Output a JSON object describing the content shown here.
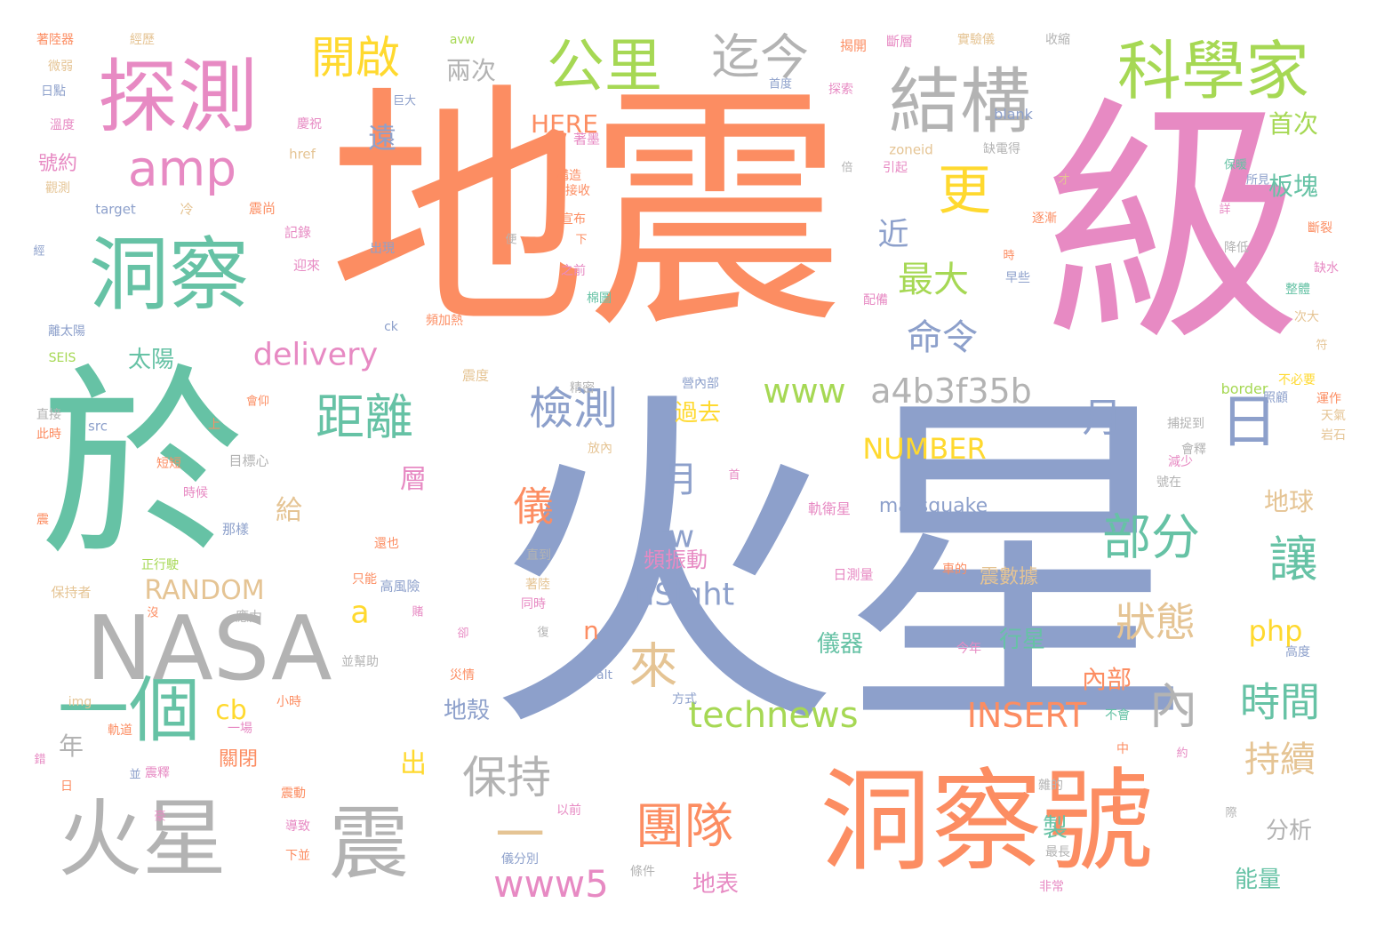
{
  "words": [
    {
      "text": "火星",
      "color": "#8da0cb"
    },
    {
      "text": "地震",
      "color": "#fc8d62"
    },
    {
      "text": "級",
      "color": "#e78ac3"
    },
    {
      "text": "於",
      "color": "#66c2a5"
    },
    {
      "text": "洞察號",
      "color": "#fc8d62"
    },
    {
      "text": "探測",
      "color": "#e78ac3"
    },
    {
      "text": "洞察",
      "color": "#66c2a5"
    },
    {
      "text": "NASA",
      "color": "#b3b3b3"
    },
    {
      "text": "火星",
      "color": "#b3b3b3"
    },
    {
      "text": "震",
      "color": "#b3b3b3"
    },
    {
      "text": "一個",
      "color": "#66c2a5"
    },
    {
      "text": "結構",
      "color": "#b3b3b3"
    },
    {
      "text": "科學家",
      "color": "#a6d854"
    },
    {
      "text": "公里",
      "color": "#a6d854"
    },
    {
      "text": "迄今",
      "color": "#b3b3b3"
    },
    {
      "text": "開啟",
      "color": "#ffd92f"
    },
    {
      "text": "amp",
      "color": "#e78ac3"
    },
    {
      "text": "更",
      "color": "#ffd92f"
    },
    {
      "text": "距離",
      "color": "#66c2a5"
    },
    {
      "text": "檢測",
      "color": "#8da0cb"
    },
    {
      "text": "部分",
      "color": "#66c2a5"
    },
    {
      "text": "讓",
      "color": "#66c2a5"
    },
    {
      "text": "月",
      "color": "#8da0cb"
    },
    {
      "text": "日",
      "color": "#8da0cb"
    },
    {
      "text": "內",
      "color": "#b3b3b3"
    },
    {
      "text": "時間",
      "color": "#66c2a5"
    },
    {
      "text": "狀態",
      "color": "#e5c494"
    },
    {
      "text": "持續",
      "color": "#e5c494"
    },
    {
      "text": "團隊",
      "color": "#fc8d62"
    },
    {
      "text": "保持",
      "color": "#b3b3b3"
    },
    {
      "text": "來",
      "color": "#e5c494"
    },
    {
      "text": "一",
      "color": "#e5c494"
    },
    {
      "text": "www5",
      "color": "#e78ac3"
    },
    {
      "text": "technews",
      "color": "#a6d854"
    },
    {
      "text": "INSERT",
      "color": "#fc8d62"
    },
    {
      "text": "NUMBER",
      "color": "#ffd92f"
    },
    {
      "text": "RANDOM",
      "color": "#e5c494"
    },
    {
      "text": "www",
      "color": "#a6d854"
    },
    {
      "text": "a4b3f35b",
      "color": "#b3b3b3"
    },
    {
      "text": "delivery",
      "color": "#e78ac3"
    },
    {
      "text": "InSight",
      "color": "#8da0cb"
    },
    {
      "text": "php",
      "color": "#ffd92f"
    },
    {
      "text": "命令",
      "color": "#8da0cb"
    },
    {
      "text": "最大",
      "color": "#a6d854"
    },
    {
      "text": "近",
      "color": "#8da0cb"
    },
    {
      "text": "儀",
      "color": "#fc8d62"
    },
    {
      "text": "月",
      "color": "#8da0cb"
    },
    {
      "text": "tw",
      "color": "#8da0cb"
    },
    {
      "text": "a",
      "color": "#ffd92f"
    },
    {
      "text": "cb",
      "color": "#ffd92f"
    },
    {
      "text": "n",
      "color": "#fc8d62"
    },
    {
      "text": "兩次",
      "color": "#b3b3b3"
    },
    {
      "text": "HERE",
      "color": "#fc8d62"
    },
    {
      "text": "遠",
      "color": "#8da0cb"
    },
    {
      "text": "首次",
      "color": "#a6d854"
    },
    {
      "text": "板塊",
      "color": "#66c2a5"
    },
    {
      "text": "號約",
      "color": "#e78ac3"
    },
    {
      "text": "太陽",
      "color": "#66c2a5"
    },
    {
      "text": "過去",
      "color": "#ffd92f"
    },
    {
      "text": "地球",
      "color": "#e5c494"
    },
    {
      "text": "頻振動",
      "color": "#e78ac3"
    },
    {
      "text": "儀器",
      "color": "#66c2a5"
    },
    {
      "text": "行星",
      "color": "#66c2a5"
    },
    {
      "text": "內部",
      "color": "#fc8d62"
    },
    {
      "text": "地殼",
      "color": "#8da0cb"
    },
    {
      "text": "震數據",
      "color": "#e5c494"
    },
    {
      "text": "分析",
      "color": "#b3b3b3"
    },
    {
      "text": "能量",
      "color": "#66c2a5"
    },
    {
      "text": "地表",
      "color": "#e78ac3"
    },
    {
      "text": "marsquake",
      "color": "#8da0cb"
    },
    {
      "text": "年",
      "color": "#b3b3b3"
    },
    {
      "text": "出",
      "color": "#ffd92f"
    },
    {
      "text": "關閉",
      "color": "#fc8d62"
    },
    {
      "text": "層",
      "color": "#e78ac3"
    },
    {
      "text": "給",
      "color": "#e5c494"
    },
    {
      "text": "製",
      "color": "#66c2a5"
    },
    {
      "text": "軌衛星",
      "color": "#e78ac3"
    },
    {
      "text": "日測量",
      "color": "#e78ac3"
    },
    {
      "text": "高風險",
      "color": "#8da0cb"
    },
    {
      "text": "應力",
      "color": "#b3b3b3"
    },
    {
      "text": "目標心",
      "color": "#b3b3b3"
    },
    {
      "text": "那樣",
      "color": "#8da0cb"
    },
    {
      "text": "正行駛",
      "color": "#a6d854"
    },
    {
      "text": "保持者",
      "color": "#e5c494"
    },
    {
      "text": "border",
      "color": "#a6d854"
    },
    {
      "text": "blank",
      "color": "#8da0cb"
    },
    {
      "text": "zoneid",
      "color": "#e5c494"
    },
    {
      "text": "href",
      "color": "#e5c494"
    },
    {
      "text": "target",
      "color": "#8da0cb"
    },
    {
      "text": "src",
      "color": "#8da0cb"
    },
    {
      "text": "SEIS",
      "color": "#a6d854"
    },
    {
      "text": "img",
      "color": "#e5c494"
    },
    {
      "text": "alt",
      "color": "#8da0cb"
    },
    {
      "text": "ck",
      "color": "#8da0cb"
    },
    {
      "text": "avw",
      "color": "#a6d854"
    },
    {
      "text": "觀測",
      "color": "#e5c494"
    },
    {
      "text": "日點",
      "color": "#8da0cb"
    },
    {
      "text": "溫度",
      "color": "#e78ac3"
    },
    {
      "text": "微弱",
      "color": "#e5c494"
    },
    {
      "text": "著陸器",
      "color": "#fc8d62"
    },
    {
      "text": "經歷",
      "color": "#e5c494"
    },
    {
      "text": "離太陽",
      "color": "#8da0cb"
    },
    {
      "text": "記錄",
      "color": "#e78ac3"
    },
    {
      "text": "迎來",
      "color": "#e78ac3"
    },
    {
      "text": "冷",
      "color": "#e5c494"
    },
    {
      "text": "震尚",
      "color": "#fc8d62"
    },
    {
      "text": "出現",
      "color": "#8da0cb"
    },
    {
      "text": "巨大",
      "color": "#8da0cb"
    },
    {
      "text": "著墨",
      "color": "#e78ac3"
    },
    {
      "text": "構造",
      "color": "#fc8d62"
    },
    {
      "text": "接收",
      "color": "#fc8d62"
    },
    {
      "text": "宣布",
      "color": "#fc8d62"
    },
    {
      "text": "之前",
      "color": "#e78ac3"
    },
    {
      "text": "精密",
      "color": "#b3b3b3"
    },
    {
      "text": "震度",
      "color": "#e5c494"
    },
    {
      "text": "直接",
      "color": "#b3b3b3"
    },
    {
      "text": "此時",
      "color": "#fc8d62"
    },
    {
      "text": "短短",
      "color": "#fc8d62"
    },
    {
      "text": "時候",
      "color": "#e78ac3"
    },
    {
      "text": "還也",
      "color": "#fc8d62"
    },
    {
      "text": "只能",
      "color": "#fc8d62"
    },
    {
      "text": "同時",
      "color": "#e78ac3"
    },
    {
      "text": "著陸",
      "color": "#e5c494"
    },
    {
      "text": "直到",
      "color": "#b3b3b3"
    },
    {
      "text": "並幫助",
      "color": "#b3b3b3"
    },
    {
      "text": "災情",
      "color": "#fc8d62"
    },
    {
      "text": "小時",
      "color": "#fc8d62"
    },
    {
      "text": "一場",
      "color": "#e78ac3"
    },
    {
      "text": "軌道",
      "color": "#fc8d62"
    },
    {
      "text": "震釋",
      "color": "#e78ac3"
    },
    {
      "text": "震動",
      "color": "#fc8d62"
    },
    {
      "text": "導致",
      "color": "#e78ac3"
    },
    {
      "text": "下並",
      "color": "#fc8d62"
    },
    {
      "text": "儀分別",
      "color": "#8da0cb"
    },
    {
      "text": "條件",
      "color": "#b3b3b3"
    },
    {
      "text": "以前",
      "color": "#e78ac3"
    },
    {
      "text": "最長",
      "color": "#b3b3b3"
    },
    {
      "text": "非常",
      "color": "#e78ac3"
    },
    {
      "text": "雜的",
      "color": "#b3b3b3"
    },
    {
      "text": "揭開",
      "color": "#fc8d62"
    },
    {
      "text": "斷層",
      "color": "#e78ac3"
    },
    {
      "text": "實驗儀",
      "color": "#e5c494"
    },
    {
      "text": "收縮",
      "color": "#b3b3b3"
    },
    {
      "text": "探索",
      "color": "#e78ac3"
    },
    {
      "text": "首度",
      "color": "#8da0cb"
    },
    {
      "text": "缺電得",
      "color": "#b3b3b3"
    },
    {
      "text": "引起",
      "color": "#e78ac3"
    },
    {
      "text": "保暖",
      "color": "#66c2a5"
    },
    {
      "text": "所見",
      "color": "#8da0cb"
    },
    {
      "text": "逐漸",
      "color": "#fc8d62"
    },
    {
      "text": "斷裂",
      "color": "#fc8d62"
    },
    {
      "text": "降低",
      "color": "#b3b3b3"
    },
    {
      "text": "缺水",
      "color": "#e78ac3"
    },
    {
      "text": "早些",
      "color": "#8da0cb"
    },
    {
      "text": "配備",
      "color": "#e78ac3"
    },
    {
      "text": "整體",
      "color": "#66c2a5"
    },
    {
      "text": "次大",
      "color": "#e5c494"
    },
    {
      "text": "不必要",
      "color": "#ffd92f"
    },
    {
      "text": "照顧",
      "color": "#8da0cb"
    },
    {
      "text": "運作",
      "color": "#fc8d62"
    },
    {
      "text": "天氣",
      "color": "#e5c494"
    },
    {
      "text": "岩石",
      "color": "#e5c494"
    },
    {
      "text": "捕捉到",
      "color": "#b3b3b3"
    },
    {
      "text": "會釋",
      "color": "#b3b3b3"
    },
    {
      "text": "減少",
      "color": "#e78ac3"
    },
    {
      "text": "號在",
      "color": "#b3b3b3"
    },
    {
      "text": "車的",
      "color": "#fc8d62"
    },
    {
      "text": "今年",
      "color": "#e78ac3"
    },
    {
      "text": "不會",
      "color": "#66c2a5"
    },
    {
      "text": "高度",
      "color": "#8da0cb"
    },
    {
      "text": "方式",
      "color": "#8da0cb"
    },
    {
      "text": "營內部",
      "color": "#8da0cb"
    },
    {
      "text": "頻加熱",
      "color": "#fc8d62"
    },
    {
      "text": "棉圖",
      "color": "#66c2a5"
    },
    {
      "text": "放內",
      "color": "#e5c494"
    },
    {
      "text": "上",
      "color": "#fc8d62"
    },
    {
      "text": "倍",
      "color": "#b3b3b3"
    },
    {
      "text": "便",
      "color": "#b3b3b3"
    },
    {
      "text": "下",
      "color": "#fc8d62"
    },
    {
      "text": "時",
      "color": "#fc8d62"
    },
    {
      "text": "首",
      "color": "#e78ac3"
    },
    {
      "text": "才",
      "color": "#e5c494"
    },
    {
      "text": "詳",
      "color": "#e78ac3"
    },
    {
      "text": "經",
      "color": "#8da0cb"
    },
    {
      "text": "震",
      "color": "#fc8d62"
    },
    {
      "text": "復",
      "color": "#b3b3b3"
    },
    {
      "text": "沒",
      "color": "#fc8d62"
    },
    {
      "text": "錯",
      "color": "#e78ac3"
    },
    {
      "text": "日",
      "color": "#fc8d62"
    },
    {
      "text": "並",
      "color": "#8da0cb"
    },
    {
      "text": "豪",
      "color": "#e78ac3"
    },
    {
      "text": "中",
      "color": "#fc8d62"
    },
    {
      "text": "約",
      "color": "#e78ac3"
    },
    {
      "text": "際",
      "color": "#b3b3b3"
    },
    {
      "text": "卻",
      "color": "#e78ac3"
    },
    {
      "text": "賭",
      "color": "#e78ac3"
    },
    {
      "text": "會仰",
      "color": "#fc8d62"
    },
    {
      "text": "慶祝",
      "color": "#e78ac3"
    },
    {
      "text": "符",
      "color": "#e5c494"
    }
  ]
}
